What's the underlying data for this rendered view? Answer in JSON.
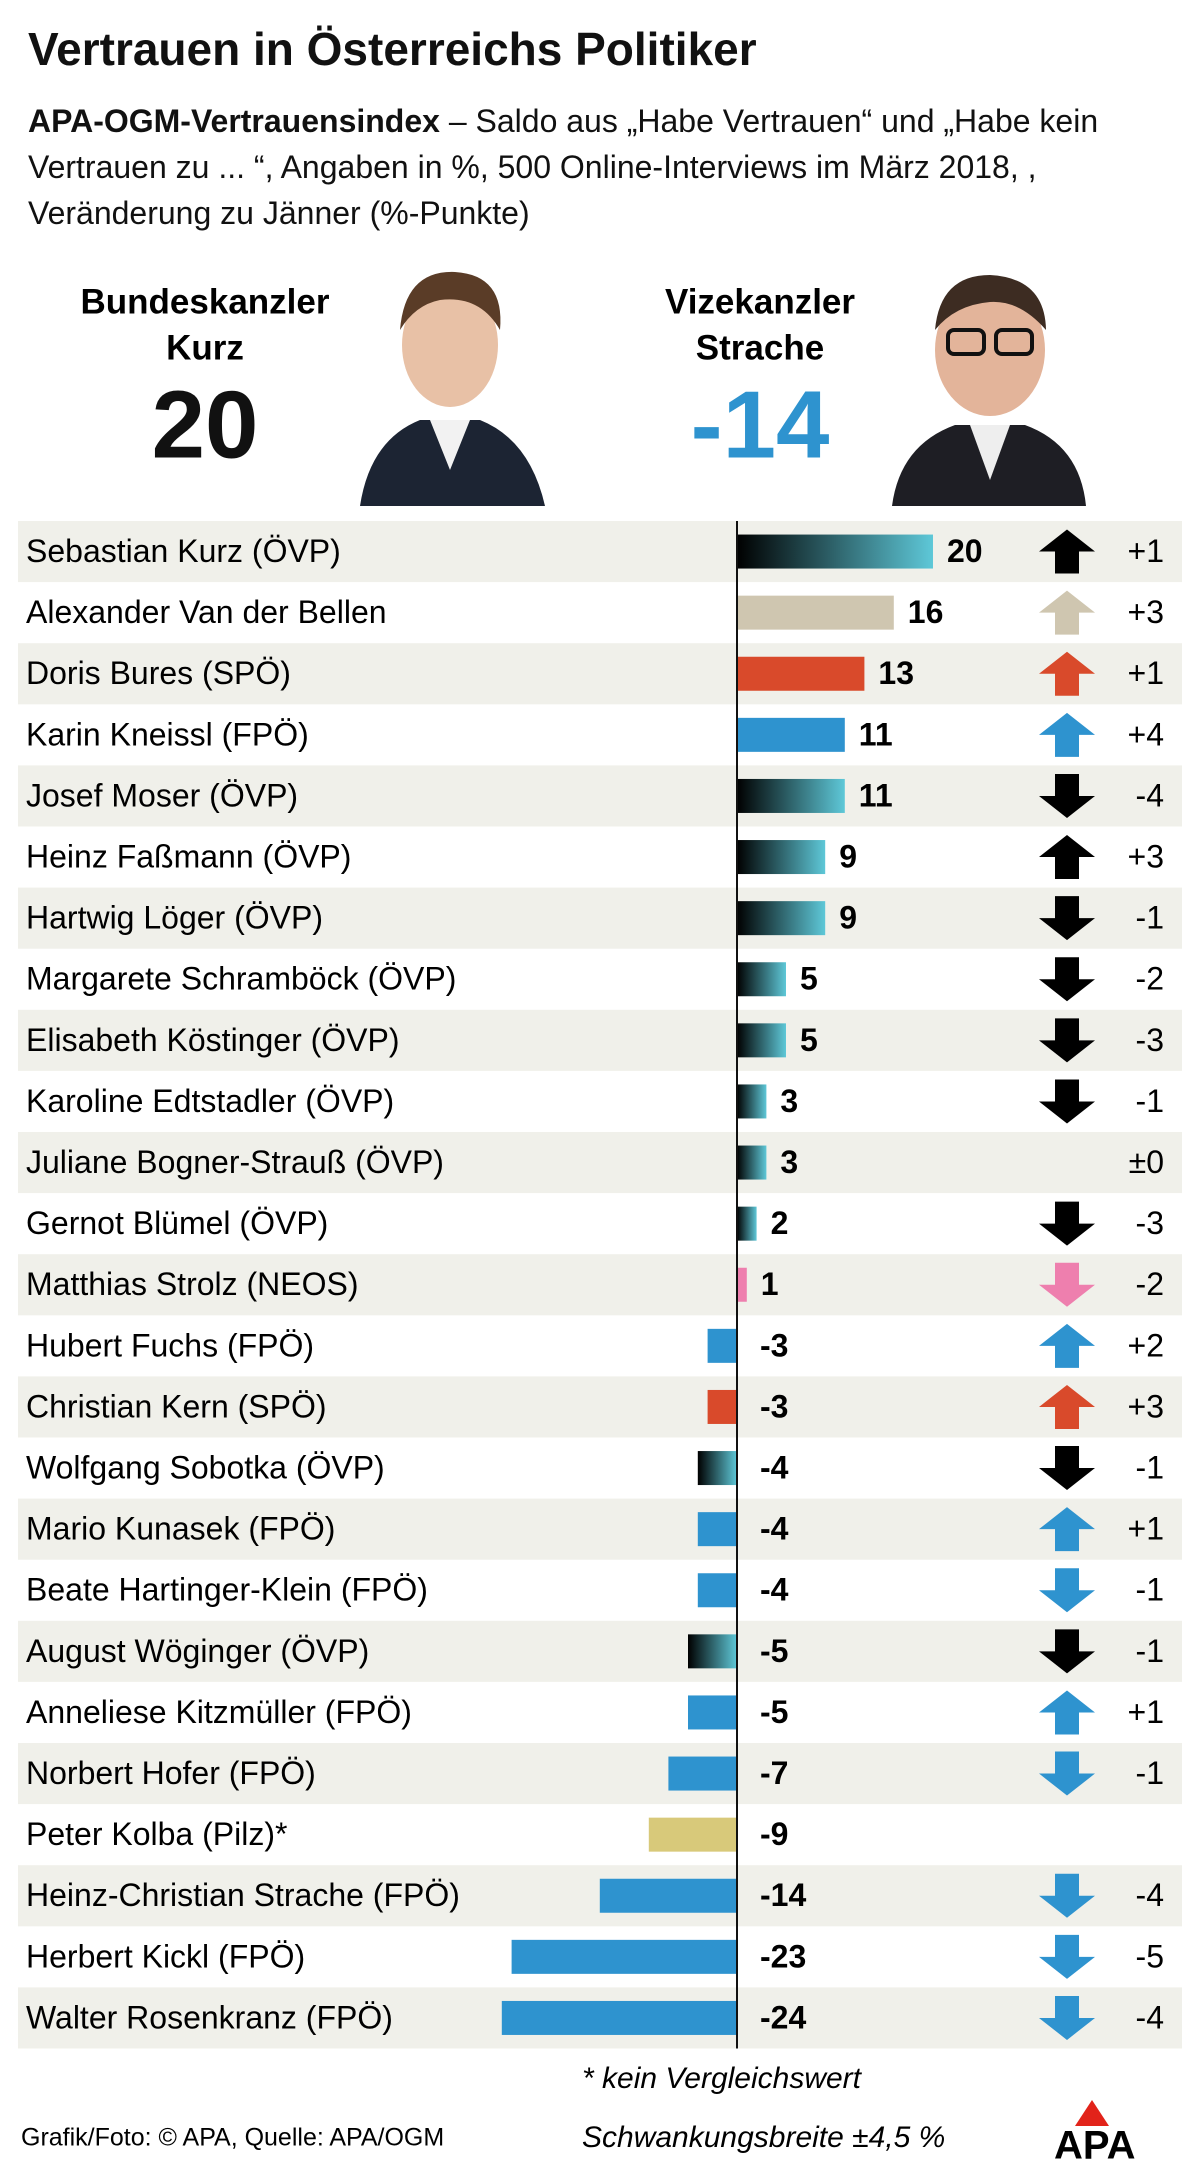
{
  "chart_data": {
    "type": "bar",
    "title": "Vertrauen in Österreichs Politiker",
    "subtitle_bold": "APA-OGM-Vertrauensindex",
    "subtitle": "– Saldo aus „Habe Vertrauen“ und „Habe kein Vertrauen zu ... “, Angaben in %, 500 Online-Interviews im März 2018, , Veränderung zu Jänner (%-Punkte)",
    "highlights": [
      {
        "label": [
          "Bundeskanzler",
          "Kurz"
        ],
        "value": 20,
        "color": "#111111"
      },
      {
        "label": [
          "Vizekanzler",
          "Strache"
        ],
        "value": -14,
        "color": "#2e93cf"
      }
    ],
    "categories": [
      "Sebastian Kurz (ÖVP)",
      "Alexander Van der Bellen",
      "Doris Bures (SPÖ)",
      "Karin Kneissl (FPÖ)",
      "Josef Moser (ÖVP)",
      "Heinz Faßmann (ÖVP)",
      "Hartwig Löger (ÖVP)",
      "Margarete Schramböck (ÖVP)",
      "Elisabeth Köstinger (ÖVP)",
      "Karoline Edtstadler (ÖVP)",
      "Juliane Bogner-Strauß (ÖVP)",
      "Gernot Blümel (ÖVP)",
      "Matthias Strolz (NEOS)",
      "Hubert Fuchs (FPÖ)",
      "Christian Kern (SPÖ)",
      "Wolfgang Sobotka (ÖVP)",
      "Mario Kunasek (FPÖ)",
      "Beate Hartinger-Klein (FPÖ)",
      "August Wöginger (ÖVP)",
      "Anneliese Kitzmüller (FPÖ)",
      "Norbert Hofer (FPÖ)",
      "Peter Kolba (Pilz)*",
      "Heinz-Christian Strache (FPÖ)",
      "Herbert Kickl (FPÖ)",
      "Walter Rosenkranz (FPÖ)"
    ],
    "values": [
      20,
      16,
      13,
      11,
      11,
      9,
      9,
      5,
      5,
      3,
      3,
      2,
      1,
      -3,
      -3,
      -4,
      -4,
      -4,
      -5,
      -5,
      -7,
      -9,
      -14,
      -23,
      -24
    ],
    "colors": [
      "#5ec8d8",
      "#cfc6b0",
      "#d94a2b",
      "#2e93cf",
      "#5ec8d8",
      "#5ec8d8",
      "#5ec8d8",
      "#5ec8d8",
      "#5ec8d8",
      "#5ec8d8",
      "#5ec8d8",
      "#5ec8d8",
      "#ee7fae",
      "#2e93cf",
      "#d94a2b",
      "#5ec8d8",
      "#2e93cf",
      "#2e93cf",
      "#5ec8d8",
      "#2e93cf",
      "#2e93cf",
      "#d8c97a",
      "#2e93cf",
      "#2e93cf",
      "#2e93cf"
    ],
    "gradient": [
      true,
      false,
      false,
      false,
      true,
      true,
      true,
      true,
      true,
      true,
      true,
      true,
      false,
      false,
      false,
      true,
      false,
      false,
      true,
      false,
      false,
      false,
      false,
      false,
      false
    ],
    "gradient_start": "#000000",
    "changes": [
      1,
      3,
      1,
      4,
      -4,
      3,
      -1,
      -2,
      -3,
      -1,
      0,
      -3,
      -2,
      2,
      3,
      -1,
      1,
      -1,
      -1,
      1,
      -1,
      null,
      -4,
      -5,
      -4
    ],
    "change_labels": [
      "+1",
      "+3",
      "+1",
      "+4",
      "-4",
      "+3",
      "-1",
      "-2",
      "-3",
      "-1",
      "±0",
      "-3",
      "-2",
      "+2",
      "+3",
      "-1",
      "+1",
      "-1",
      "-1",
      "+1",
      "-1",
      null,
      "-4",
      "-5",
      "-4"
    ],
    "footnote": "* kein Vergleichswert",
    "source": "Grafik/Foto: © APA, Quelle: APA/OGM",
    "margin_note": "Schwankungsbreite ±4,5 %",
    "logo": "APA"
  }
}
